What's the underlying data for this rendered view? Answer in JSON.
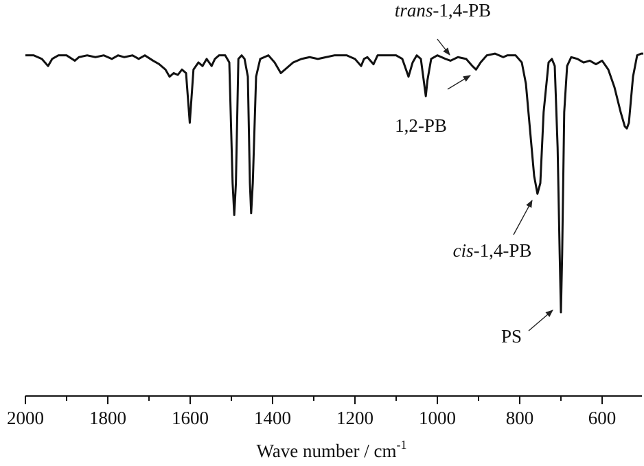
{
  "chart_data": {
    "type": "line",
    "xlabel": "Wave number / cm",
    "xlabel_sup": "-1",
    "xlim": [
      2000,
      500
    ],
    "ylim": [
      0,
      100
    ],
    "xticks": [
      2000,
      1800,
      1600,
      1400,
      1200,
      1000,
      800,
      600
    ],
    "xminorticks": [
      1900,
      1700,
      1500,
      1300,
      1100,
      900,
      700
    ],
    "series": [
      {
        "color": "#111111",
        "x": [
          2000,
          1980,
          1960,
          1945,
          1935,
          1920,
          1900,
          1880,
          1870,
          1850,
          1830,
          1810,
          1790,
          1775,
          1760,
          1740,
          1725,
          1710,
          1690,
          1675,
          1660,
          1650,
          1640,
          1630,
          1620,
          1610,
          1601,
          1592,
          1580,
          1570,
          1560,
          1548,
          1540,
          1530,
          1515,
          1505,
          1497,
          1493,
          1489,
          1483,
          1475,
          1468,
          1460,
          1455,
          1452,
          1448,
          1440,
          1430,
          1410,
          1395,
          1380,
          1370,
          1350,
          1330,
          1310,
          1290,
          1270,
          1250,
          1220,
          1200,
          1185,
          1178,
          1170,
          1155,
          1145,
          1120,
          1100,
          1085,
          1070,
          1060,
          1050,
          1040,
          1032,
          1028,
          1024,
          1015,
          1000,
          980,
          968,
          950,
          930,
          915,
          906,
          895,
          880,
          860,
          840,
          830,
          810,
          795,
          785,
          775,
          765,
          757,
          750,
          742,
          730,
          722,
          715,
          708,
          703,
          700,
          697,
          692,
          685,
          675,
          660,
          645,
          630,
          615,
          600,
          585,
          570,
          555,
          545,
          540,
          535,
          525,
          515,
          505,
          500
        ],
        "values": [
          96,
          96,
          95,
          93,
          95,
          96,
          96,
          94.5,
          95.5,
          96,
          95.5,
          96,
          95,
          96,
          95.5,
          96,
          95,
          96,
          94.5,
          93.5,
          92,
          90,
          91,
          90.5,
          92,
          91,
          77,
          92,
          94,
          93,
          95,
          93,
          95,
          96,
          96,
          94,
          60,
          51,
          60,
          95,
          96,
          95,
          90,
          60,
          51.5,
          60,
          90,
          95,
          96,
          94,
          91,
          92,
          94,
          95,
          95.5,
          95,
          95.5,
          96,
          96,
          95,
          93,
          95,
          95.5,
          93.5,
          96,
          96,
          96,
          95,
          90,
          94,
          96,
          95,
          88,
          84.5,
          89,
          95,
          96,
          95,
          94.5,
          95.5,
          95,
          93,
          92,
          94,
          96,
          96.5,
          95.5,
          96,
          96,
          94,
          88,
          75,
          62,
          57,
          60,
          80,
          94,
          95,
          93,
          70,
          40,
          23.6,
          40,
          80,
          93,
          95.5,
          95,
          94,
          94.5,
          93.5,
          94.5,
          92,
          87,
          80,
          76,
          75.4,
          77,
          90,
          96,
          96.5,
          96.5
        ]
      }
    ],
    "annotations": [
      {
        "italic": "trans",
        "text": "-1,4-PB"
      },
      {
        "text": "1,2-PB"
      },
      {
        "italic": "cis",
        "text": "-1,4-PB"
      },
      {
        "text": "PS"
      }
    ]
  }
}
